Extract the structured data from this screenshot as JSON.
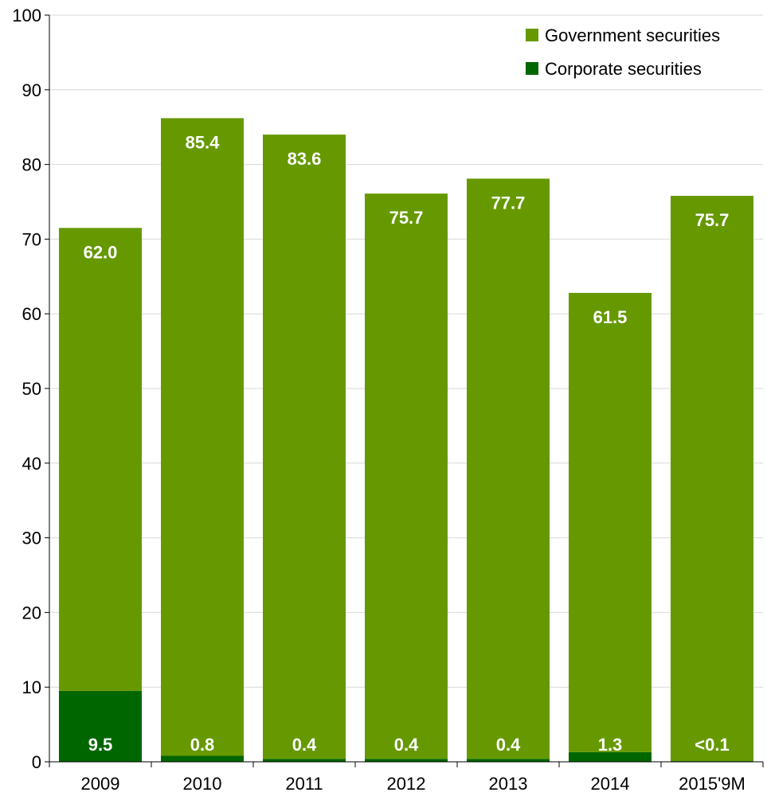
{
  "colors": {
    "government": "#669900",
    "corporate": "#006600",
    "grid": "#d9d9d9",
    "axis": "#000000"
  },
  "chart_data": {
    "type": "bar",
    "stacked": true,
    "categories": [
      "2009",
      "2010",
      "2011",
      "2012",
      "2013",
      "2014",
      "2015'9M"
    ],
    "series": [
      {
        "name": "Corporate securities",
        "values": [
          9.5,
          0.8,
          0.4,
          0.4,
          0.4,
          1.3,
          0.1
        ],
        "labels": [
          "9.5",
          "0.8",
          "0.4",
          "0.4",
          "0.4",
          "1.3",
          "<0.1"
        ]
      },
      {
        "name": "Government securities",
        "values": [
          62.0,
          85.4,
          83.6,
          75.7,
          77.7,
          61.5,
          75.7
        ],
        "labels": [
          "62.0",
          "85.4",
          "83.6",
          "75.7",
          "77.7",
          "61.5",
          "75.7"
        ]
      }
    ],
    "ylim": [
      0,
      100
    ],
    "yticks": [
      0,
      10,
      20,
      30,
      40,
      50,
      60,
      70,
      80,
      90,
      100
    ],
    "grid": true,
    "legend_position": "top-right",
    "legend_order": [
      "Government securities",
      "Corporate securities"
    ]
  }
}
